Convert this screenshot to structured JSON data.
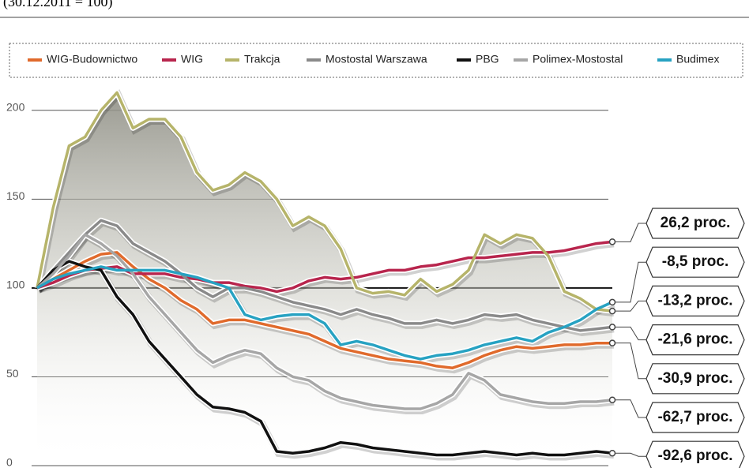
{
  "chart_data": {
    "type": "line",
    "subtitle": "(30.12.2011 = 100)",
    "ylim": [
      0,
      211
    ],
    "yticks": [
      0,
      50,
      100,
      150,
      200
    ],
    "grid": true,
    "baseline": 100,
    "legend": "top",
    "series": [
      {
        "name": "WIG-Budownictwo",
        "color": "#e06a2c",
        "end_label": "-30,9 proc.",
        "values": [
          100,
          105,
          110,
          115,
          119,
          120,
          112,
          105,
          100,
          93,
          88,
          80,
          82,
          82,
          80,
          78,
          76,
          74,
          70,
          66,
          64,
          62,
          60,
          59,
          58,
          56,
          55,
          58,
          62,
          65,
          67,
          66,
          67,
          68,
          68,
          69,
          69
        ]
      },
      {
        "name": "WIG",
        "color": "#b8254d",
        "end_label": "26,2 proc.",
        "values": [
          100,
          103,
          107,
          110,
          111,
          112,
          108,
          108,
          108,
          106,
          105,
          103,
          103,
          101,
          100,
          98,
          100,
          104,
          106,
          105,
          106,
          108,
          110,
          110,
          112,
          113,
          115,
          117,
          117,
          118,
          119,
          120,
          120,
          121,
          123,
          125,
          126
        ]
      },
      {
        "name": "Trakcja",
        "color": "#b6b46a",
        "end_label": "-13,2 proc.",
        "shaded": true,
        "values": [
          100,
          145,
          180,
          185,
          200,
          210,
          190,
          195,
          195,
          185,
          165,
          155,
          158,
          165,
          160,
          150,
          135,
          140,
          135,
          122,
          100,
          97,
          98,
          96,
          105,
          98,
          102,
          110,
          130,
          125,
          130,
          128,
          118,
          98,
          94,
          88,
          87
        ]
      },
      {
        "name": "Mostostal Warszawa",
        "color": "#8a8a8a",
        "end_label": "-21,6 proc.",
        "values": [
          100,
          110,
          120,
          130,
          138,
          135,
          125,
          120,
          115,
          108,
          100,
          95,
          100,
          100,
          98,
          95,
          92,
          90,
          88,
          85,
          88,
          85,
          83,
          80,
          80,
          82,
          80,
          82,
          85,
          84,
          85,
          82,
          80,
          78,
          76,
          77,
          78
        ]
      },
      {
        "name": "PBG",
        "color": "#111111",
        "end_label": "-92,6 proc.",
        "values": [
          100,
          110,
          115,
          112,
          110,
          95,
          85,
          70,
          60,
          50,
          40,
          33,
          32,
          30,
          25,
          8,
          7,
          8,
          10,
          13,
          12,
          10,
          9,
          8,
          7,
          6,
          6,
          7,
          8,
          7,
          6,
          7,
          6,
          6,
          7,
          8,
          7
        ]
      },
      {
        "name": "Polimex-Mostostal",
        "color": "#a6a6a6",
        "end_label": "-62,7 proc.",
        "values": [
          100,
          108,
          118,
          130,
          125,
          118,
          108,
          95,
          85,
          75,
          65,
          58,
          62,
          65,
          63,
          55,
          50,
          48,
          42,
          38,
          36,
          34,
          33,
          32,
          32,
          35,
          40,
          52,
          48,
          40,
          38,
          36,
          35,
          35,
          36,
          36,
          37
        ]
      },
      {
        "name": "Budimex",
        "color": "#27a2c2",
        "end_label": "-8,5 proc.",
        "values": [
          100,
          105,
          108,
          110,
          112,
          110,
          110,
          110,
          110,
          108,
          106,
          103,
          100,
          85,
          82,
          84,
          85,
          85,
          80,
          68,
          70,
          68,
          65,
          62,
          60,
          62,
          63,
          65,
          68,
          70,
          72,
          70,
          75,
          78,
          82,
          88,
          92
        ]
      }
    ]
  }
}
